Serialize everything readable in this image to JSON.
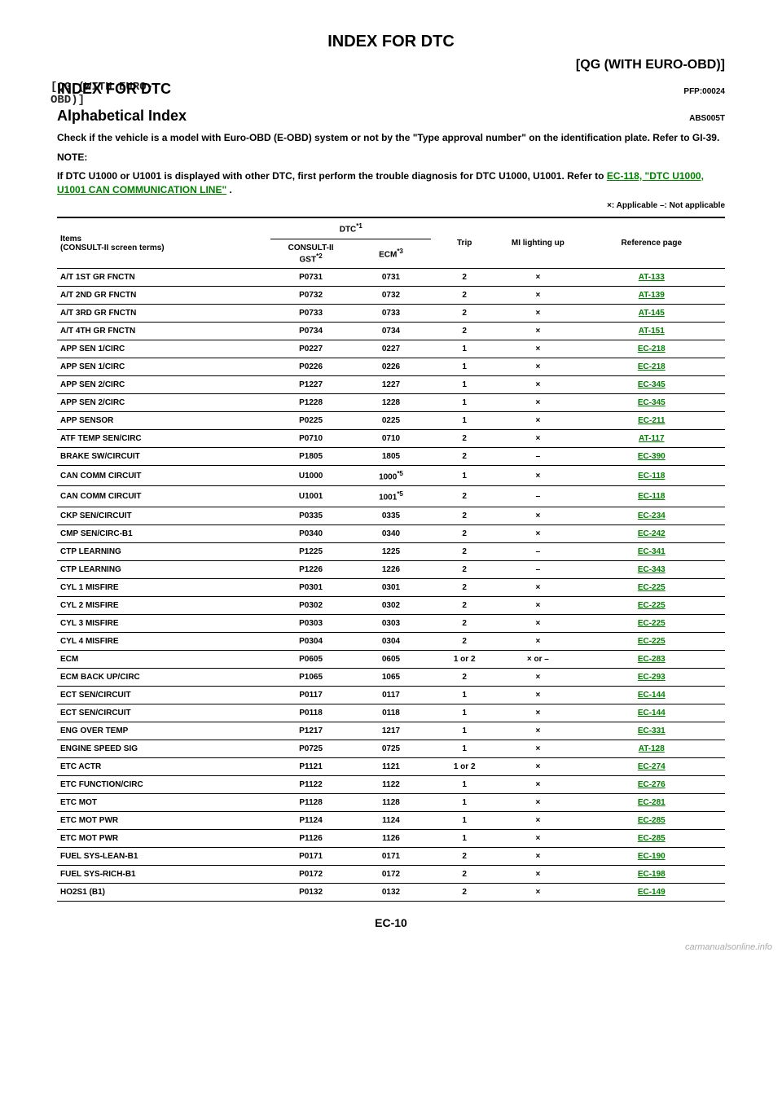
{
  "header": {
    "main_title": "INDEX FOR DTC",
    "section_right": "[QG (WITH EURO-OBD)]",
    "index_heading": "INDEX FOR DTC",
    "overprint": "[QG (WITH EURO-OBD)]",
    "pfp_code": "PFP:00024",
    "alpha_heading": "Alphabetical Index",
    "alpha_code": "ABS005T",
    "body1": "Check if the vehicle is a model with Euro-OBD (E-OBD) system or not by the \"Type approval number\" on the identification plate. Refer to GI-39.",
    "note_label": "NOTE:",
    "body2a": "If DTC U1000 or U1001 is displayed with other DTC, first perform the trouble diagnosis for DTC U1000, U1001. Refer to ",
    "body2_link": "EC-118, \"DTC U1000, U1001 CAN COMMUNICATION LINE\"",
    "body2b": " .",
    "legend": "×: Applicable –: Not applicable"
  },
  "table": {
    "head": {
      "items_label": "Items",
      "items_sub": "(CONSULT-II screen terms)",
      "dtc_label": "DTC",
      "dtc_sup": "*1",
      "consult_label": "CONSULT-II",
      "consult_sub": "GST",
      "consult_sup": "*2",
      "ecm_label": "ECM",
      "ecm_sup": "*3",
      "trip_label": "Trip",
      "mi_label": "MI lighting up",
      "ref_label": "Reference page"
    },
    "rows": [
      {
        "item": "A/T 1ST GR FNCTN",
        "consult": "P0731",
        "ecm": "0731",
        "trip": "2",
        "mi": "×",
        "ref": "AT-133"
      },
      {
        "item": "A/T 2ND GR FNCTN",
        "consult": "P0732",
        "ecm": "0732",
        "trip": "2",
        "mi": "×",
        "ref": "AT-139"
      },
      {
        "item": "A/T 3RD GR FNCTN",
        "consult": "P0733",
        "ecm": "0733",
        "trip": "2",
        "mi": "×",
        "ref": "AT-145"
      },
      {
        "item": "A/T 4TH GR FNCTN",
        "consult": "P0734",
        "ecm": "0734",
        "trip": "2",
        "mi": "×",
        "ref": "AT-151"
      },
      {
        "item": "APP SEN 1/CIRC",
        "consult": "P0227",
        "ecm": "0227",
        "trip": "1",
        "mi": "×",
        "ref": "EC-218"
      },
      {
        "item": "APP SEN 1/CIRC",
        "consult": "P0226",
        "ecm": "0226",
        "trip": "1",
        "mi": "×",
        "ref": "EC-218"
      },
      {
        "item": "APP SEN 2/CIRC",
        "consult": "P1227",
        "ecm": "1227",
        "trip": "1",
        "mi": "×",
        "ref": "EC-345"
      },
      {
        "item": "APP SEN 2/CIRC",
        "consult": "P1228",
        "ecm": "1228",
        "trip": "1",
        "mi": "×",
        "ref": "EC-345"
      },
      {
        "item": "APP SENSOR",
        "consult": "P0225",
        "ecm": "0225",
        "trip": "1",
        "mi": "×",
        "ref": "EC-211"
      },
      {
        "item": "ATF TEMP SEN/CIRC",
        "consult": "P0710",
        "ecm": "0710",
        "trip": "2",
        "mi": "×",
        "ref": "AT-117"
      },
      {
        "item": "BRAKE SW/CIRCUIT",
        "consult": "P1805",
        "ecm": "1805",
        "trip": "2",
        "mi": "–",
        "ref": "EC-390"
      },
      {
        "item": "CAN COMM CIRCUIT",
        "consult": "U1000",
        "ecm": "1000*5",
        "trip": "1",
        "mi": "×",
        "ref": "EC-118"
      },
      {
        "item": "CAN COMM CIRCUIT",
        "consult": "U1001",
        "ecm": "1001*5",
        "trip": "2",
        "mi": "–",
        "ref": "EC-118"
      },
      {
        "item": "CKP SEN/CIRCUIT",
        "consult": "P0335",
        "ecm": "0335",
        "trip": "2",
        "mi": "×",
        "ref": "EC-234"
      },
      {
        "item": "CMP SEN/CIRC-B1",
        "consult": "P0340",
        "ecm": "0340",
        "trip": "2",
        "mi": "×",
        "ref": "EC-242"
      },
      {
        "item": "CTP LEARNING",
        "consult": "P1225",
        "ecm": "1225",
        "trip": "2",
        "mi": "–",
        "ref": "EC-341"
      },
      {
        "item": "CTP LEARNING",
        "consult": "P1226",
        "ecm": "1226",
        "trip": "2",
        "mi": "–",
        "ref": "EC-343"
      },
      {
        "item": "CYL 1 MISFIRE",
        "consult": "P0301",
        "ecm": "0301",
        "trip": "2",
        "mi": "×",
        "ref": "EC-225"
      },
      {
        "item": "CYL 2 MISFIRE",
        "consult": "P0302",
        "ecm": "0302",
        "trip": "2",
        "mi": "×",
        "ref": "EC-225"
      },
      {
        "item": "CYL 3 MISFIRE",
        "consult": "P0303",
        "ecm": "0303",
        "trip": "2",
        "mi": "×",
        "ref": "EC-225"
      },
      {
        "item": "CYL 4 MISFIRE",
        "consult": "P0304",
        "ecm": "0304",
        "trip": "2",
        "mi": "×",
        "ref": "EC-225"
      },
      {
        "item": "ECM",
        "consult": "P0605",
        "ecm": "0605",
        "trip": "1 or 2",
        "mi": "× or –",
        "ref": "EC-283"
      },
      {
        "item": "ECM BACK UP/CIRC",
        "consult": "P1065",
        "ecm": "1065",
        "trip": "2",
        "mi": "×",
        "ref": "EC-293"
      },
      {
        "item": "ECT SEN/CIRCUIT",
        "consult": "P0117",
        "ecm": "0117",
        "trip": "1",
        "mi": "×",
        "ref": "EC-144"
      },
      {
        "item": "ECT SEN/CIRCUIT",
        "consult": "P0118",
        "ecm": "0118",
        "trip": "1",
        "mi": "×",
        "ref": "EC-144"
      },
      {
        "item": "ENG OVER TEMP",
        "consult": "P1217",
        "ecm": "1217",
        "trip": "1",
        "mi": "×",
        "ref": "EC-331"
      },
      {
        "item": "ENGINE SPEED SIG",
        "consult": "P0725",
        "ecm": "0725",
        "trip": "1",
        "mi": "×",
        "ref": "AT-128"
      },
      {
        "item": "ETC ACTR",
        "consult": "P1121",
        "ecm": "1121",
        "trip": "1 or 2",
        "mi": "×",
        "ref": "EC-274"
      },
      {
        "item": "ETC FUNCTION/CIRC",
        "consult": "P1122",
        "ecm": "1122",
        "trip": "1",
        "mi": "×",
        "ref": "EC-276"
      },
      {
        "item": "ETC MOT",
        "consult": "P1128",
        "ecm": "1128",
        "trip": "1",
        "mi": "×",
        "ref": "EC-281"
      },
      {
        "item": "ETC MOT PWR",
        "consult": "P1124",
        "ecm": "1124",
        "trip": "1",
        "mi": "×",
        "ref": "EC-285"
      },
      {
        "item": "ETC MOT PWR",
        "consult": "P1126",
        "ecm": "1126",
        "trip": "1",
        "mi": "×",
        "ref": "EC-285"
      },
      {
        "item": "FUEL SYS-LEAN-B1",
        "consult": "P0171",
        "ecm": "0171",
        "trip": "2",
        "mi": "×",
        "ref": "EC-190"
      },
      {
        "item": "FUEL SYS-RICH-B1",
        "consult": "P0172",
        "ecm": "0172",
        "trip": "2",
        "mi": "×",
        "ref": "EC-198"
      },
      {
        "item": "HO2S1 (B1)",
        "consult": "P0132",
        "ecm": "0132",
        "trip": "2",
        "mi": "×",
        "ref": "EC-149"
      }
    ]
  },
  "footer": {
    "page_num": "EC-10",
    "watermark": "carmanualsonline.info"
  }
}
